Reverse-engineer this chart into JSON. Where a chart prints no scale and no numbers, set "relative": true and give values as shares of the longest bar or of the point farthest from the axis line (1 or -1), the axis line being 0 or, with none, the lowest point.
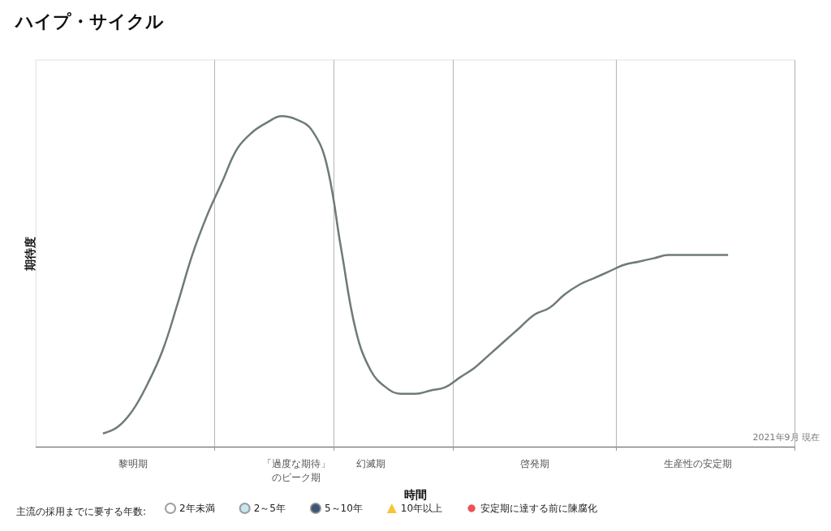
{
  "chart_data": {
    "type": "line",
    "title": "ハイプ・サイクル",
    "xlabel": "時間",
    "ylabel": "期待度",
    "relative": true,
    "tick_labels": "x",
    "grid": "x",
    "legend": "bottom",
    "legend_title": "主流の採用までに要する年数:",
    "annotations": [
      "2021年9月 現在"
    ],
    "categories": [
      null,
      null,
      null,
      null,
      null,
      null,
      "黎明期",
      null,
      null,
      null,
      null,
      null,
      null,
      null,
      null,
      null,
      null,
      "「過度な期待」のピーク期",
      null,
      null,
      null,
      null,
      "幻滅期",
      null,
      null,
      null,
      null,
      null,
      null,
      null,
      null,
      null,
      null,
      "啓発期",
      null,
      null,
      null,
      null,
      null,
      null,
      null,
      null,
      null,
      null,
      "生産性の安定期",
      null,
      null,
      null,
      null,
      null,
      null
    ],
    "series": [
      {
        "color": "#6e7b78",
        "marker": "none",
        "values": [
          null,
          null,
          null,
          null,
          0.04,
          0.06,
          0.11,
          0.19,
          0.29,
          0.43,
          0.58,
          0.7,
          0.8,
          0.9,
          0.95,
          0.98,
          1,
          0.99,
          0.96,
          0.86,
          0.6,
          0.35,
          0.23,
          0.18,
          0.16,
          0.16,
          0.17,
          0.18,
          0.21,
          0.24,
          0.28,
          0.32,
          0.36,
          0.4,
          0.42,
          0.46,
          0.49,
          0.51,
          0.53,
          0.55,
          0.56,
          0.57,
          0.58,
          0.58,
          0.58,
          0.58,
          0.58,
          null,
          null,
          null,
          null
        ]
      },
      {
        "type": "scatter",
        "name": "2年未満",
        "color": "#ffffff",
        "marker": "circle",
        "values": [
          null,
          null,
          null,
          null,
          null,
          null,
          null,
          null,
          null,
          null,
          null,
          null,
          null,
          null,
          null,
          null,
          null,
          null,
          null,
          null,
          null,
          null,
          null,
          null,
          null,
          null,
          null,
          null,
          null,
          null,
          null,
          null,
          null,
          null,
          null,
          null,
          null,
          null,
          null,
          null,
          null,
          null,
          null,
          null,
          null,
          null,
          null,
          null,
          null,
          null,
          null
        ]
      },
      {
        "type": "scatter",
        "name": "2～5年",
        "color": "#b9dff0",
        "marker": "circle",
        "values": [
          null,
          null,
          null,
          null,
          null,
          null,
          null,
          null,
          null,
          null,
          null,
          null,
          null,
          null,
          null,
          null,
          null,
          null,
          null,
          null,
          null,
          null,
          null,
          null,
          null,
          null,
          null,
          null,
          null,
          null,
          null,
          null,
          null,
          null,
          null,
          null,
          null,
          null,
          null,
          null,
          null,
          null,
          null,
          null,
          null,
          null,
          null,
          null,
          null,
          null,
          null
        ]
      },
      {
        "type": "scatter",
        "name": "5～10年",
        "color": "#0b2a55",
        "marker": "circle",
        "values": [
          null,
          null,
          null,
          null,
          null,
          null,
          null,
          null,
          null,
          null,
          null,
          null,
          null,
          null,
          null,
          null,
          null,
          null,
          null,
          null,
          null,
          null,
          null,
          null,
          null,
          null,
          null,
          null,
          null,
          null,
          null,
          null,
          null,
          null,
          null,
          null,
          null,
          null,
          null,
          null,
          null,
          null,
          null,
          null,
          null,
          null,
          null,
          null,
          null,
          null,
          null
        ]
      },
      {
        "type": "scatter",
        "name": "10年以上",
        "color": "#f2b705",
        "marker": "triangle",
        "values": [
          null,
          null,
          null,
          null,
          null,
          null,
          null,
          null,
          null,
          null,
          null,
          null,
          null,
          null,
          null,
          null,
          null,
          null,
          null,
          null,
          null,
          null,
          null,
          null,
          null,
          null,
          null,
          null,
          null,
          null,
          null,
          null,
          null,
          null,
          null,
          null,
          null,
          null,
          null,
          null,
          null,
          null,
          null,
          null,
          null,
          null,
          null,
          null,
          null,
          null,
          null
        ]
      },
      {
        "type": "scatter",
        "name": "安定期に達する前に陳腐化",
        "color": "#e8262a",
        "marker": "cross",
        "values": [
          null,
          null,
          null,
          null,
          null,
          null,
          null,
          null,
          null,
          null,
          null,
          null,
          null,
          null,
          null,
          null,
          null,
          null,
          null,
          null,
          null,
          null,
          null,
          null,
          null,
          null,
          null,
          null,
          null,
          null,
          null,
          null,
          null,
          null,
          null,
          null,
          null,
          null,
          null,
          null,
          null,
          null,
          null,
          null,
          null,
          null,
          null,
          null,
          null,
          null,
          null
        ]
      }
    ]
  }
}
